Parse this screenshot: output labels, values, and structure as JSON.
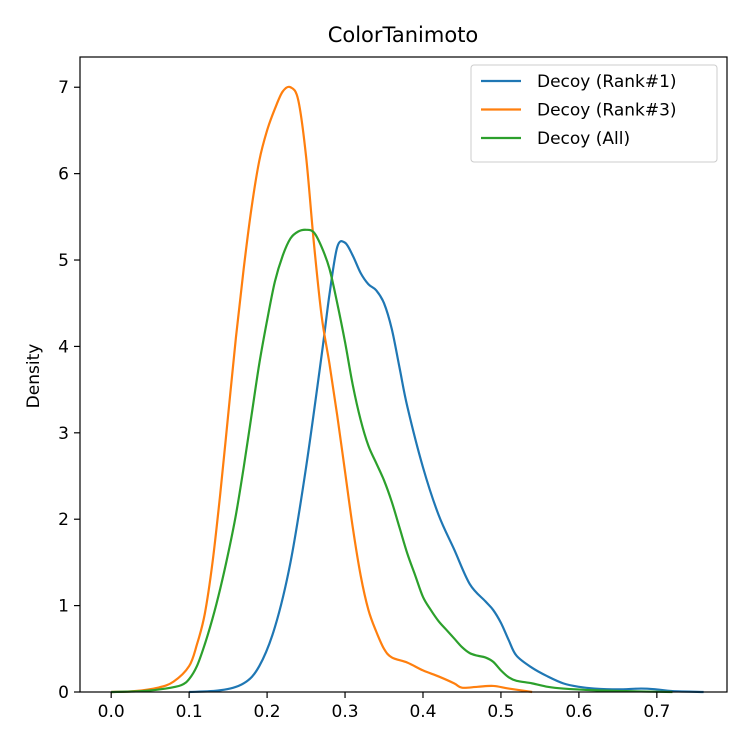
{
  "chart_data": {
    "type": "line",
    "title": "ColorTanimoto",
    "xlabel": "",
    "ylabel": "Density",
    "xlim": [
      -0.04,
      0.79
    ],
    "ylim": [
      0,
      7.35
    ],
    "xticks": [
      0.0,
      0.1,
      0.2,
      0.3,
      0.4,
      0.5,
      0.6,
      0.7
    ],
    "xtick_labels": [
      "0.0",
      "0.1",
      "0.2",
      "0.3",
      "0.4",
      "0.5",
      "0.6",
      "0.7"
    ],
    "yticks": [
      0,
      1,
      2,
      3,
      4,
      5,
      6,
      7
    ],
    "ytick_labels": [
      "0",
      "1",
      "2",
      "3",
      "4",
      "5",
      "6",
      "7"
    ],
    "grid": false,
    "legend_position": "top-right",
    "series": [
      {
        "name": "Decoy (Rank#1)",
        "color": "#1f77b4",
        "points": [
          [
            0.1,
            0.0
          ],
          [
            0.14,
            0.02
          ],
          [
            0.17,
            0.1
          ],
          [
            0.19,
            0.3
          ],
          [
            0.21,
            0.75
          ],
          [
            0.23,
            1.5
          ],
          [
            0.25,
            2.6
          ],
          [
            0.27,
            3.9
          ],
          [
            0.28,
            4.6
          ],
          [
            0.29,
            5.15
          ],
          [
            0.3,
            5.2
          ],
          [
            0.31,
            5.05
          ],
          [
            0.32,
            4.85
          ],
          [
            0.33,
            4.72
          ],
          [
            0.34,
            4.65
          ],
          [
            0.35,
            4.5
          ],
          [
            0.36,
            4.2
          ],
          [
            0.37,
            3.75
          ],
          [
            0.38,
            3.3
          ],
          [
            0.4,
            2.6
          ],
          [
            0.42,
            2.05
          ],
          [
            0.44,
            1.65
          ],
          [
            0.46,
            1.25
          ],
          [
            0.48,
            1.05
          ],
          [
            0.49,
            0.95
          ],
          [
            0.5,
            0.8
          ],
          [
            0.51,
            0.6
          ],
          [
            0.52,
            0.42
          ],
          [
            0.54,
            0.28
          ],
          [
            0.56,
            0.18
          ],
          [
            0.58,
            0.1
          ],
          [
            0.6,
            0.06
          ],
          [
            0.62,
            0.04
          ],
          [
            0.65,
            0.03
          ],
          [
            0.68,
            0.04
          ],
          [
            0.7,
            0.03
          ],
          [
            0.72,
            0.01
          ],
          [
            0.76,
            0.0
          ]
        ]
      },
      {
        "name": "Decoy (Rank#3)",
        "color": "#ff7f0e",
        "points": [
          [
            0.0,
            0.0
          ],
          [
            0.03,
            0.01
          ],
          [
            0.06,
            0.05
          ],
          [
            0.08,
            0.12
          ],
          [
            0.1,
            0.3
          ],
          [
            0.11,
            0.55
          ],
          [
            0.12,
            0.9
          ],
          [
            0.13,
            1.5
          ],
          [
            0.14,
            2.3
          ],
          [
            0.15,
            3.2
          ],
          [
            0.16,
            4.1
          ],
          [
            0.17,
            4.9
          ],
          [
            0.18,
            5.6
          ],
          [
            0.19,
            6.15
          ],
          [
            0.2,
            6.5
          ],
          [
            0.21,
            6.75
          ],
          [
            0.22,
            6.95
          ],
          [
            0.23,
            7.0
          ],
          [
            0.24,
            6.85
          ],
          [
            0.25,
            6.2
          ],
          [
            0.26,
            5.2
          ],
          [
            0.27,
            4.35
          ],
          [
            0.28,
            3.8
          ],
          [
            0.29,
            3.2
          ],
          [
            0.3,
            2.55
          ],
          [
            0.31,
            1.9
          ],
          [
            0.32,
            1.35
          ],
          [
            0.33,
            0.95
          ],
          [
            0.34,
            0.7
          ],
          [
            0.35,
            0.5
          ],
          [
            0.36,
            0.4
          ],
          [
            0.38,
            0.34
          ],
          [
            0.4,
            0.25
          ],
          [
            0.42,
            0.18
          ],
          [
            0.44,
            0.1
          ],
          [
            0.45,
            0.05
          ],
          [
            0.47,
            0.06
          ],
          [
            0.49,
            0.07
          ],
          [
            0.51,
            0.04
          ],
          [
            0.54,
            0.0
          ]
        ]
      },
      {
        "name": "Decoy (All)",
        "color": "#2ca02c",
        "points": [
          [
            0.0,
            0.0
          ],
          [
            0.04,
            0.01
          ],
          [
            0.07,
            0.04
          ],
          [
            0.09,
            0.08
          ],
          [
            0.1,
            0.15
          ],
          [
            0.11,
            0.3
          ],
          [
            0.12,
            0.55
          ],
          [
            0.13,
            0.85
          ],
          [
            0.14,
            1.2
          ],
          [
            0.15,
            1.6
          ],
          [
            0.16,
            2.05
          ],
          [
            0.17,
            2.6
          ],
          [
            0.18,
            3.2
          ],
          [
            0.19,
            3.8
          ],
          [
            0.2,
            4.3
          ],
          [
            0.21,
            4.75
          ],
          [
            0.22,
            5.05
          ],
          [
            0.23,
            5.25
          ],
          [
            0.24,
            5.33
          ],
          [
            0.25,
            5.35
          ],
          [
            0.26,
            5.32
          ],
          [
            0.27,
            5.15
          ],
          [
            0.28,
            4.9
          ],
          [
            0.29,
            4.5
          ],
          [
            0.3,
            4.05
          ],
          [
            0.31,
            3.55
          ],
          [
            0.32,
            3.15
          ],
          [
            0.33,
            2.85
          ],
          [
            0.34,
            2.65
          ],
          [
            0.35,
            2.45
          ],
          [
            0.36,
            2.2
          ],
          [
            0.37,
            1.9
          ],
          [
            0.38,
            1.6
          ],
          [
            0.39,
            1.35
          ],
          [
            0.4,
            1.1
          ],
          [
            0.41,
            0.95
          ],
          [
            0.42,
            0.82
          ],
          [
            0.43,
            0.72
          ],
          [
            0.44,
            0.62
          ],
          [
            0.45,
            0.52
          ],
          [
            0.46,
            0.45
          ],
          [
            0.47,
            0.42
          ],
          [
            0.48,
            0.4
          ],
          [
            0.49,
            0.35
          ],
          [
            0.5,
            0.25
          ],
          [
            0.51,
            0.17
          ],
          [
            0.52,
            0.13
          ],
          [
            0.54,
            0.1
          ],
          [
            0.56,
            0.06
          ],
          [
            0.58,
            0.04
          ],
          [
            0.62,
            0.02
          ],
          [
            0.66,
            0.01
          ],
          [
            0.72,
            0.0
          ]
        ]
      }
    ]
  }
}
